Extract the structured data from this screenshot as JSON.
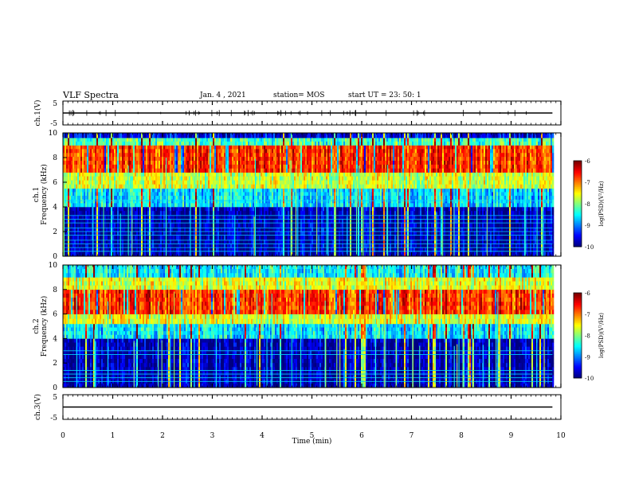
{
  "header": {
    "title": "VLF Spectra",
    "date": "Jan. 4 , 2021",
    "station": "station= MOS",
    "start": "start UT =  23: 50: 1"
  },
  "chart_data": [
    {
      "type": "line",
      "panel": "ch1-waveform",
      "ylabel": "ch.1(V)",
      "y_ticklabels": [
        "5",
        "-5"
      ],
      "ylim": [
        -5,
        5
      ],
      "xlim": [
        0,
        10
      ],
      "series_level": 0
    },
    {
      "type": "heatmap",
      "panel": "ch1-spectrogram",
      "ylabel": "ch.1\nFrequency (kHz)",
      "ylim": [
        0,
        10
      ],
      "y_ticklabels": [
        "0",
        "2",
        "4",
        "6",
        "8",
        "10"
      ],
      "xlim": [
        0,
        10
      ],
      "data_extent_min": 9.83,
      "colorbar": {
        "label": "log(PSD)(V²/Hz)",
        "ticklabels": [
          "-6",
          "-7",
          "-8",
          "-9",
          "-10"
        ],
        "range": [
          -10,
          -6
        ]
      },
      "bands": [
        {
          "f_low": 0,
          "f_high": 4.0,
          "log_psd": -9.8
        },
        {
          "f_low": 4.0,
          "f_high": 5.5,
          "log_psd": -8.6
        },
        {
          "f_low": 5.5,
          "f_high": 6.8,
          "log_psd": -7.7
        },
        {
          "f_low": 6.8,
          "f_high": 9.0,
          "log_psd": -6.7
        },
        {
          "f_low": 9.0,
          "f_high": 9.6,
          "log_psd": -8.2
        },
        {
          "f_low": 9.6,
          "f_high": 10.0,
          "log_psd": -9.6
        }
      ],
      "tonal_lines_khz": [
        0.4,
        0.7,
        1.0,
        1.3,
        1.7,
        2.0,
        2.3,
        2.7,
        3.0,
        3.3,
        4.5
      ]
    },
    {
      "type": "heatmap",
      "panel": "ch2-spectrogram",
      "ylabel": "ch.2\nFrequency (kHz)",
      "ylim": [
        0,
        10
      ],
      "y_ticklabels": [
        "0",
        "2",
        "4",
        "6",
        "8",
        "10"
      ],
      "xlim": [
        0,
        10
      ],
      "data_extent_min": 9.83,
      "colorbar": {
        "label": "log(PSD)(V²/Hz)",
        "ticklabels": [
          "-6",
          "-7",
          "-8",
          "-9",
          "-10"
        ],
        "range": [
          -10,
          -6
        ]
      },
      "bands": [
        {
          "f_low": 0,
          "f_high": 4.0,
          "log_psd": -9.8
        },
        {
          "f_low": 4.0,
          "f_high": 5.2,
          "log_psd": -8.6
        },
        {
          "f_low": 5.2,
          "f_high": 6.0,
          "log_psd": -7.6
        },
        {
          "f_low": 6.0,
          "f_high": 8.0,
          "log_psd": -6.7
        },
        {
          "f_low": 8.0,
          "f_high": 9.0,
          "log_psd": -7.6
        },
        {
          "f_low": 9.0,
          "f_high": 10.0,
          "log_psd": -8.5
        }
      ],
      "tonal_lines_khz": [
        0.5,
        0.8,
        1.1,
        1.4,
        2.7,
        3.0
      ]
    },
    {
      "type": "line",
      "panel": "ch3-waveform",
      "ylabel": "ch.3(V)",
      "y_ticklabels": [
        "5",
        "-5"
      ],
      "ylim": [
        -5,
        5
      ],
      "xlim": [
        0,
        10
      ],
      "series_level": 0,
      "xlabel": "Time  (min)",
      "x_ticklabels": [
        "0",
        "1",
        "2",
        "3",
        "4",
        "5",
        "6",
        "7",
        "8",
        "9",
        "10"
      ]
    }
  ]
}
